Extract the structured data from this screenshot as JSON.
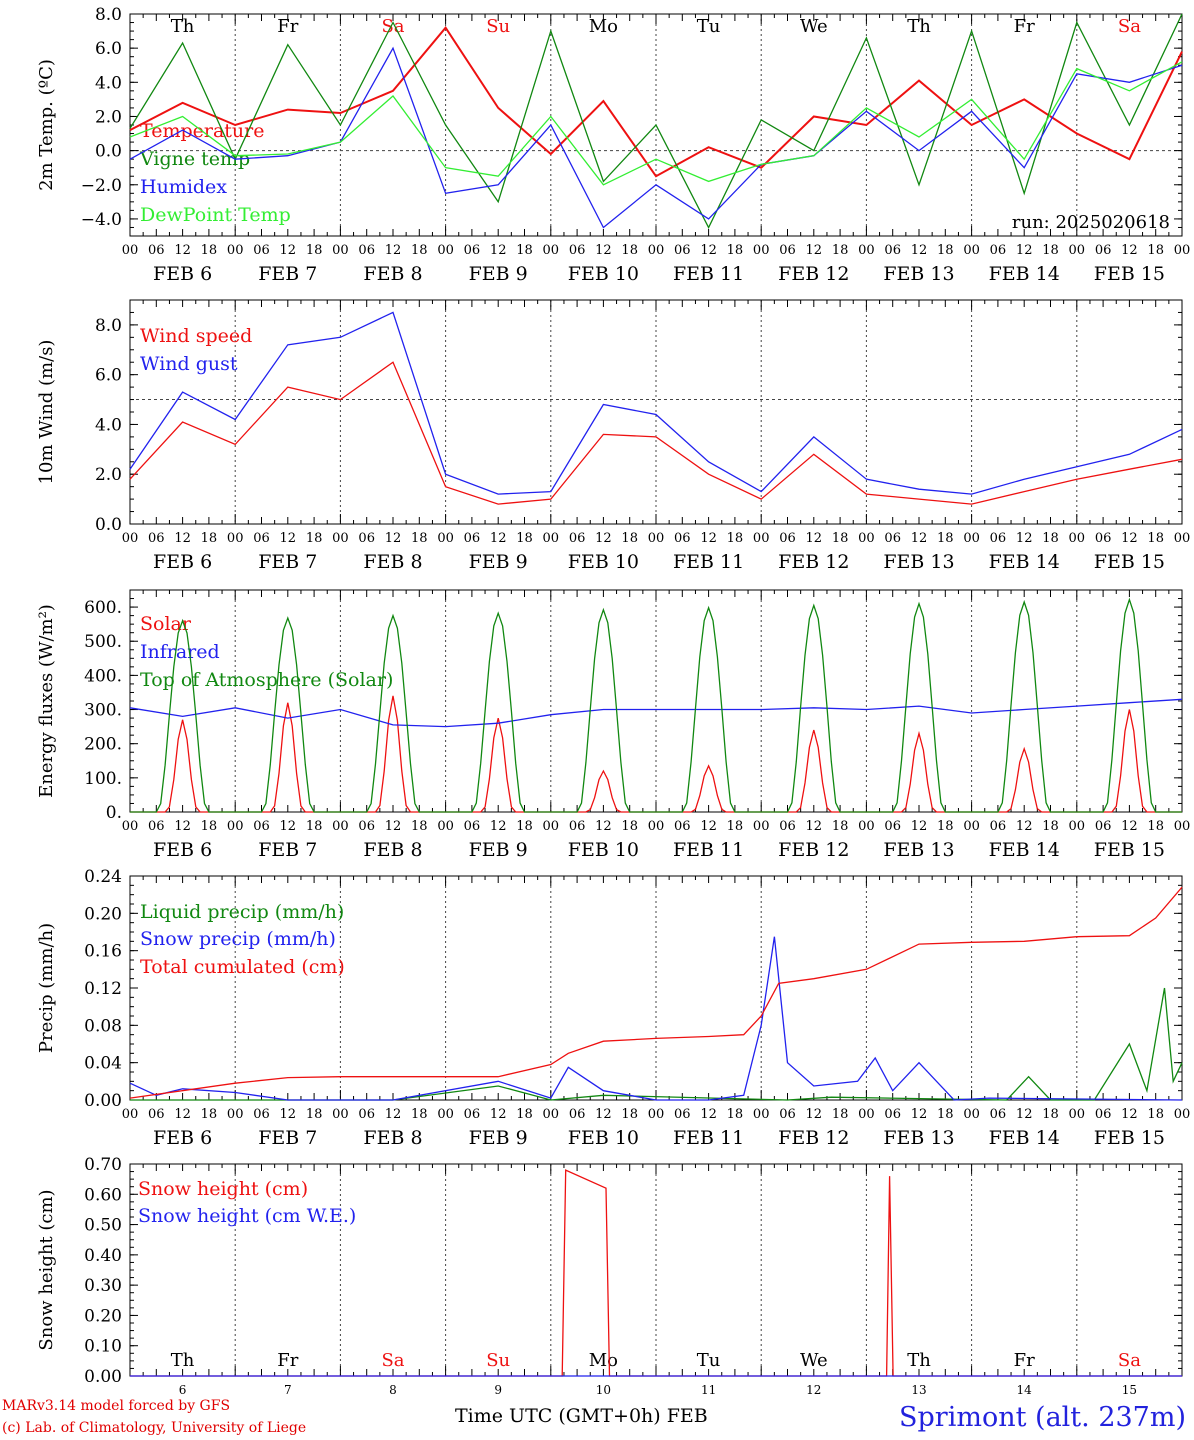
{
  "run_label": "run: 2025020618",
  "time_axis": {
    "hour_ticks": [
      "00",
      "06",
      "12",
      "18"
    ],
    "date_labels": [
      "FEB 6",
      "FEB 7",
      "FEB 8",
      "FEB 9",
      "FEB 10",
      "FEB 11",
      "FEB 12",
      "FEB 13",
      "FEB 14",
      "FEB 15"
    ],
    "weekdays": [
      "Th",
      "Fr",
      "Sa",
      "Su",
      "Mo",
      "Tu",
      "We",
      "Th",
      "Fr",
      "Sa"
    ],
    "weekend_flags": [
      false,
      false,
      true,
      true,
      false,
      false,
      false,
      false,
      false,
      true
    ],
    "day_numbers": [
      "6",
      "7",
      "8",
      "9",
      "10",
      "11",
      "12",
      "13",
      "14",
      "15"
    ],
    "start": "2025-02-06T00:00Z",
    "end": "2025-02-16T00:00Z"
  },
  "footer": {
    "model_line": "MARv3.14 model forced by GFS",
    "credit_line": "(c) Lab. of Climatology, University of Liege",
    "axis_title": "Time UTC (GMT+0h) FEB",
    "station": "Sprimont (alt. 237m)"
  },
  "colors": {
    "red": "#ee1111",
    "green": "#118811",
    "blue": "#2222ee",
    "lightgreen": "#33ee33",
    "grid": "#555555"
  },
  "chart_data": [
    {
      "type": "line",
      "ylabel": "2m Temp. (ºC)",
      "ylim": [
        -5,
        8
      ],
      "yticks": [
        -4,
        -2,
        0,
        2,
        4,
        6,
        8
      ],
      "ytick_labels": [
        "−4.0",
        "−2.0",
        "0.0",
        "2.0",
        "4.0",
        "6.0",
        "8.0"
      ],
      "ref_line": 0,
      "show_weekdays": true,
      "series": [
        {
          "name": "Temperature",
          "color": "red",
          "x": [
            0,
            12,
            24,
            36,
            48,
            60,
            72,
            84,
            96,
            108,
            120,
            132,
            144,
            156,
            168,
            180,
            192,
            204,
            216,
            228,
            240
          ],
          "values": [
            1.2,
            2.8,
            1.5,
            2.4,
            2.2,
            3.5,
            7.2,
            2.5,
            -0.2,
            2.9,
            -1.5,
            0.2,
            -1.0,
            2.0,
            1.5,
            4.1,
            1.5,
            3.0,
            1.0,
            -0.5,
            5.8
          ]
        },
        {
          "name": "Vigne temp",
          "color": "green",
          "x": [
            0,
            12,
            24,
            36,
            48,
            60,
            72,
            84,
            96,
            108,
            120,
            132,
            144,
            156,
            168,
            180,
            192,
            204,
            216,
            228,
            240
          ],
          "values": [
            1.3,
            6.3,
            -0.5,
            6.2,
            1.5,
            7.5,
            1.5,
            -3.0,
            7.0,
            -1.8,
            1.5,
            -4.5,
            1.8,
            0.0,
            6.6,
            -2.0,
            7.0,
            -2.5,
            7.5,
            1.5,
            8.0
          ]
        },
        {
          "name": "Humidex",
          "color": "blue",
          "x": [
            0,
            12,
            24,
            36,
            48,
            60,
            72,
            84,
            96,
            108,
            120,
            132,
            144,
            156,
            168,
            180,
            192,
            204,
            216,
            228,
            240
          ],
          "values": [
            -0.5,
            1.2,
            -0.5,
            -0.3,
            0.5,
            6.0,
            -2.5,
            -2.0,
            1.5,
            -4.5,
            -2.0,
            -4.0,
            -0.8,
            -0.3,
            2.3,
            0.0,
            2.3,
            -1.0,
            4.5,
            4.0,
            5.0
          ]
        },
        {
          "name": "DewPoint Temp",
          "color": "lightgreen",
          "x": [
            0,
            12,
            24,
            36,
            48,
            60,
            72,
            84,
            96,
            108,
            120,
            132,
            144,
            156,
            168,
            180,
            192,
            204,
            216,
            228,
            240
          ],
          "values": [
            0.8,
            2.0,
            -0.3,
            -0.2,
            0.5,
            3.2,
            -1.0,
            -1.5,
            2.0,
            -2.0,
            -0.5,
            -1.8,
            -0.8,
            -0.3,
            2.5,
            0.8,
            3.0,
            -0.5,
            4.8,
            3.5,
            5.2
          ]
        }
      ]
    },
    {
      "type": "line",
      "ylabel": "10m Wind (m/s)",
      "ylim": [
        0,
        9
      ],
      "yticks": [
        0,
        2,
        4,
        6,
        8
      ],
      "ytick_labels": [
        "0.0",
        "2.0",
        "4.0",
        "6.0",
        "8.0"
      ],
      "ref_line": 5,
      "series": [
        {
          "name": "Wind speed",
          "color": "red",
          "x": [
            0,
            12,
            24,
            36,
            48,
            60,
            72,
            84,
            96,
            108,
            120,
            132,
            144,
            156,
            168,
            180,
            192,
            204,
            216,
            228,
            240
          ],
          "values": [
            1.8,
            4.1,
            3.2,
            5.5,
            5.0,
            6.5,
            1.5,
            0.8,
            1.0,
            3.6,
            3.5,
            2.0,
            1.0,
            2.8,
            1.2,
            1.0,
            0.8,
            1.3,
            1.8,
            2.2,
            2.6
          ]
        },
        {
          "name": "Wind gust",
          "color": "blue",
          "x": [
            0,
            12,
            24,
            36,
            48,
            60,
            72,
            84,
            96,
            108,
            120,
            132,
            144,
            156,
            168,
            180,
            192,
            204,
            216,
            228,
            240
          ],
          "values": [
            2.2,
            5.3,
            4.2,
            7.2,
            7.5,
            8.5,
            2.0,
            1.2,
            1.3,
            4.8,
            4.4,
            2.5,
            1.3,
            3.5,
            1.8,
            1.4,
            1.2,
            1.8,
            2.3,
            2.8,
            3.8
          ]
        }
      ]
    },
    {
      "type": "line",
      "ylabel": "Energy fluxes (W/m²)",
      "ylim": [
        0,
        650
      ],
      "yticks": [
        0,
        100,
        200,
        300,
        400,
        500,
        600
      ],
      "ytick_labels": [
        "0.",
        "100.",
        "200.",
        "300.",
        "400.",
        "500.",
        "600."
      ],
      "series": [
        {
          "name": "Solar",
          "color": "red",
          "peaks": [
            270,
            320,
            340,
            275,
            120,
            135,
            240,
            230,
            185,
            300
          ]
        },
        {
          "name": "Infrared",
          "color": "blue",
          "x": [
            0,
            12,
            24,
            36,
            48,
            60,
            72,
            84,
            96,
            108,
            120,
            132,
            144,
            156,
            168,
            180,
            192,
            204,
            216,
            228,
            240
          ],
          "values": [
            305,
            280,
            305,
            275,
            300,
            255,
            250,
            260,
            285,
            300,
            300,
            300,
            300,
            305,
            300,
            310,
            290,
            300,
            310,
            320,
            330
          ]
        },
        {
          "name": "Top of Atmosphere (Solar)",
          "color": "green",
          "peaks": [
            560,
            568,
            575,
            582,
            592,
            598,
            605,
            610,
            615,
            622
          ]
        }
      ]
    },
    {
      "type": "line",
      "ylabel": "Precip (mm/h)",
      "ylim": [
        0,
        0.24
      ],
      "yticks": [
        0,
        0.04,
        0.08,
        0.12,
        0.16,
        0.2,
        0.24
      ],
      "ytick_labels": [
        "0.00",
        "0.04",
        "0.08",
        "0.12",
        "0.16",
        "0.20",
        "0.24"
      ],
      "series": [
        {
          "name": "Liquid precip (mm/h)",
          "color": "green",
          "x": [
            0,
            60,
            84,
            96,
            108,
            150,
            160,
            200,
            205,
            210,
            220,
            228,
            232,
            236,
            238,
            240
          ],
          "values": [
            0,
            0,
            0.015,
            0,
            0.005,
            0,
            0.003,
            0,
            0.025,
            0,
            0,
            0.06,
            0.01,
            0.12,
            0.02,
            0.04
          ]
        },
        {
          "name": "Snow precip (mm/h)",
          "color": "blue",
          "x": [
            0,
            6,
            12,
            24,
            36,
            60,
            84,
            96,
            100,
            108,
            120,
            132,
            140,
            144,
            147,
            150,
            156,
            166,
            170,
            174,
            180,
            184,
            188,
            196,
            240
          ],
          "values": [
            0.018,
            0.005,
            0.012,
            0.008,
            0,
            0,
            0.02,
            0.002,
            0.035,
            0.01,
            0,
            0,
            0.005,
            0.08,
            0.175,
            0.04,
            0.015,
            0.02,
            0.045,
            0.01,
            0.04,
            0.02,
            0,
            0.002,
            0
          ]
        },
        {
          "name": "Total cumulated (cm)",
          "color": "red",
          "x": [
            0,
            24,
            36,
            48,
            72,
            84,
            96,
            100,
            108,
            120,
            132,
            140,
            144,
            148,
            156,
            168,
            180,
            192,
            204,
            216,
            228,
            234,
            240
          ],
          "values": [
            0.002,
            0.018,
            0.024,
            0.025,
            0.025,
            0.025,
            0.038,
            0.05,
            0.063,
            0.066,
            0.068,
            0.07,
            0.09,
            0.125,
            0.13,
            0.14,
            0.167,
            0.169,
            0.17,
            0.175,
            0.176,
            0.195,
            0.228
          ]
        }
      ]
    },
    {
      "type": "line",
      "ylabel": "Snow height (cm)",
      "ylim": [
        0,
        0.7
      ],
      "yticks": [
        0,
        0.1,
        0.2,
        0.3,
        0.4,
        0.5,
        0.6,
        0.7
      ],
      "ytick_labels": [
        "0.00",
        "0.10",
        "0.20",
        "0.30",
        "0.40",
        "0.50",
        "0.60",
        "0.70"
      ],
      "show_weekdays_bottom": true,
      "series": [
        {
          "name": "Snow height (cm)",
          "color": "red",
          "x": [
            0,
            98.6,
            99.4,
            108.6,
            109.4,
            172.6,
            173.3,
            174.1,
            240
          ],
          "values": [
            0,
            0,
            0.68,
            0.62,
            0,
            0,
            0.66,
            0,
            0
          ]
        },
        {
          "name": "Snow height (cm W.E.)",
          "color": "blue",
          "x": [
            0,
            240
          ],
          "values": [
            0,
            0
          ]
        }
      ]
    }
  ]
}
